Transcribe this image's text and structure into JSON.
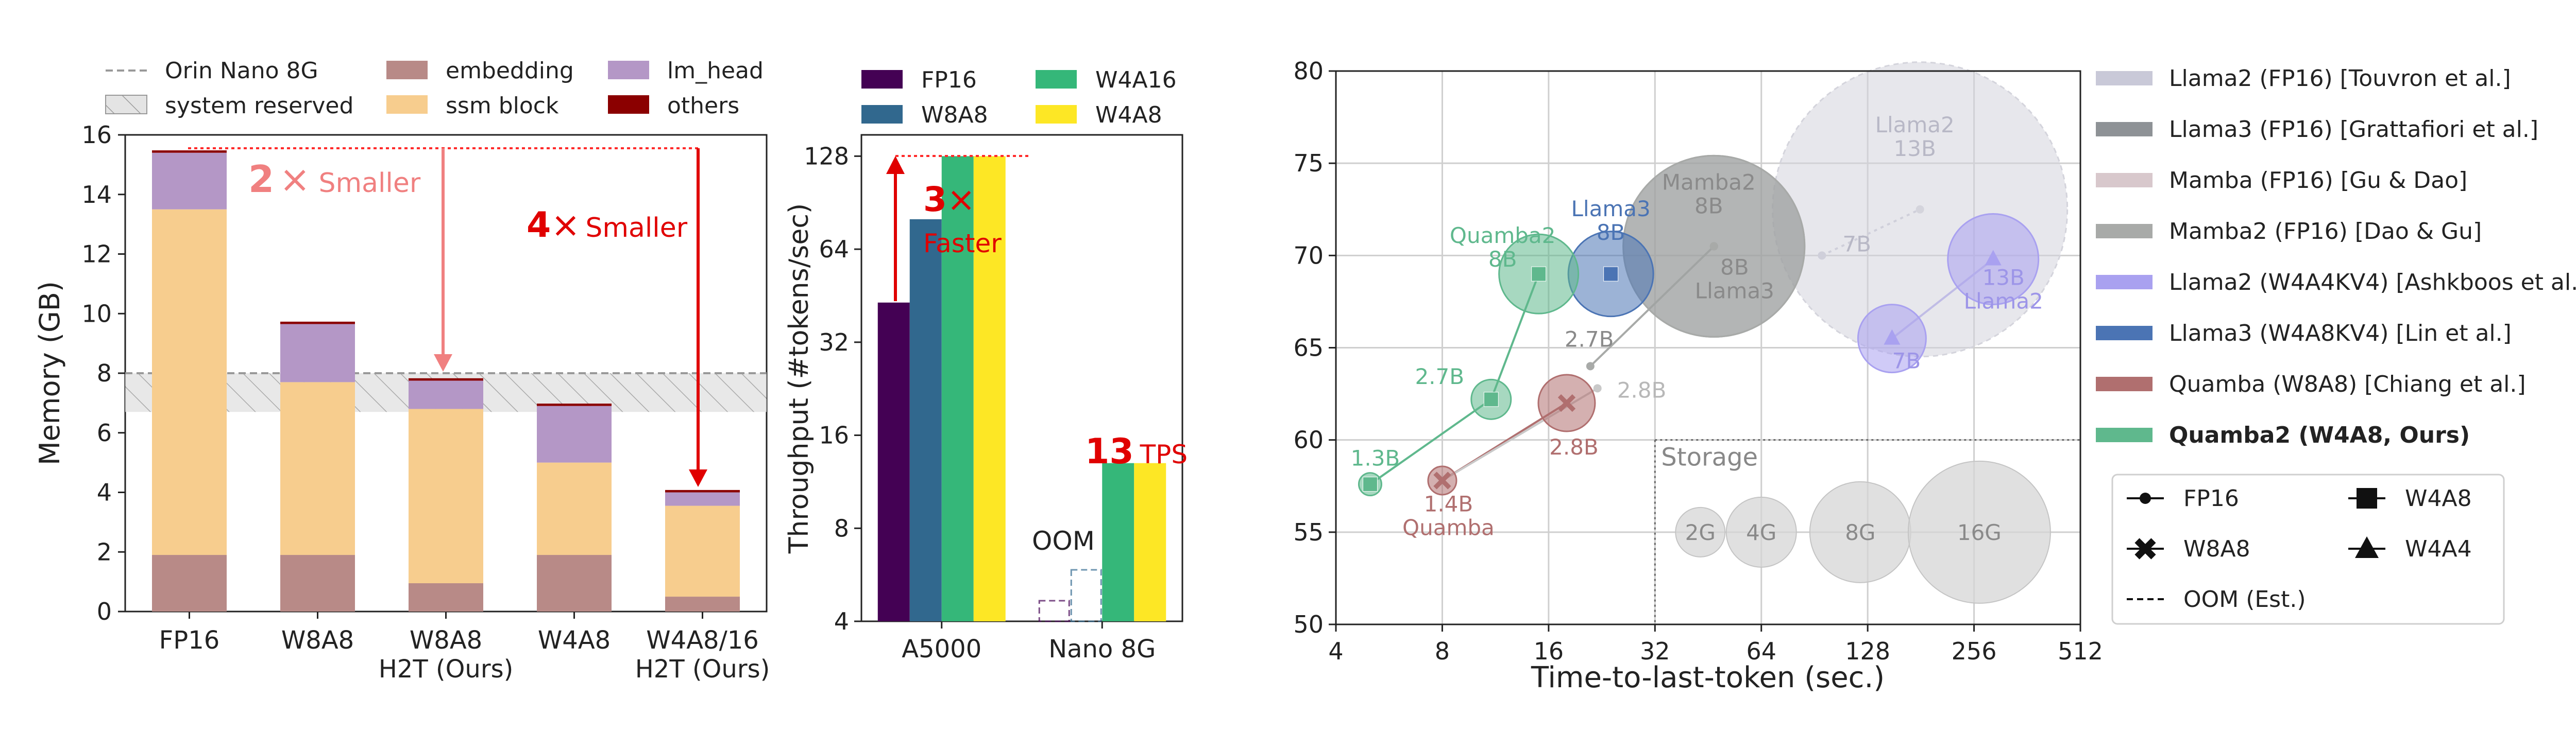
{
  "chart_data": [
    {
      "type": "bar",
      "subtype": "stacked",
      "ylabel": "Memory (GB)",
      "ylim": [
        0,
        16
      ],
      "yticks": [
        "0",
        "2",
        "4",
        "6",
        "8",
        "10",
        "12",
        "14",
        "16"
      ],
      "categories": [
        "FP16",
        "W8A8",
        "W8A8\nH2T (Ours)",
        "W4A8",
        "W4A8/16\nH2T (Ours)"
      ],
      "series": [
        {
          "name": "embedding",
          "color": "#b88a87",
          "values": [
            1.9,
            1.9,
            0.95,
            1.9,
            0.5
          ]
        },
        {
          "name": "ssm block",
          "color": "#f7cd8e",
          "values": [
            11.6,
            5.8,
            5.85,
            3.1,
            3.05
          ]
        },
        {
          "name": "lm_head",
          "color": "#b497c6",
          "values": [
            1.9,
            1.95,
            0.95,
            1.9,
            0.45
          ]
        },
        {
          "name": "others",
          "color": "#8b0000",
          "values": [
            0.08,
            0.08,
            0.08,
            0.08,
            0.08
          ]
        }
      ],
      "reference_line": {
        "name": "Orin Nano 8G",
        "value": 8
      },
      "reserved_band": {
        "name": "system reserved",
        "range": [
          6.7,
          8
        ]
      },
      "annotations": [
        {
          "factor": "2",
          "sym": "×",
          "word": "Smaller",
          "color": "#f08080"
        },
        {
          "factor": "4",
          "sym": "×",
          "word": "Smaller",
          "color": "#e00000"
        }
      ],
      "legend": {
        "position": "top",
        "entries": [
          "Orin Nano 8G",
          "system reserved",
          "embedding",
          "ssm block",
          "lm_head",
          "others"
        ]
      }
    },
    {
      "type": "bar",
      "subtype": "grouped",
      "ylabel": "Throughput (#tokens/sec)",
      "yscale": "log2",
      "ylim": [
        4,
        150
      ],
      "yticks": [
        "4",
        "8",
        "16",
        "32",
        "64",
        "128"
      ],
      "categories": [
        "A5000",
        "Nano 8G"
      ],
      "series": [
        {
          "name": "FP16",
          "color": "#440154",
          "values": [
            43,
            null
          ]
        },
        {
          "name": "W8A8",
          "color": "#31688e",
          "values": [
            80,
            null
          ]
        },
        {
          "name": "W4A16",
          "color": "#35b779",
          "values": [
            128,
            13
          ]
        },
        {
          "name": "W4A8",
          "color": "#fde725",
          "values": [
            128,
            13
          ]
        }
      ],
      "oom_label": "OOM",
      "annotations": [
        {
          "factor": "3",
          "sym": "×",
          "word": "Faster",
          "color": "#e00000"
        },
        {
          "value": "13",
          "unit": "TPS",
          "color": "#e00000"
        }
      ],
      "legend": {
        "position": "top",
        "entries": [
          "FP16",
          "W8A8",
          "W4A16",
          "W4A8"
        ]
      }
    },
    {
      "type": "scatter",
      "subtype": "bubble",
      "xlabel": "Time-to-last-token (sec.)",
      "xscale": "log2",
      "xlim": [
        4,
        512
      ],
      "xticks": [
        "4",
        "8",
        "16",
        "32",
        "64",
        "128",
        "256",
        "512"
      ],
      "ylim": [
        50,
        80
      ],
      "yticks": [
        "50",
        "55",
        "60",
        "65",
        "70",
        "75",
        "80"
      ],
      "points": [
        {
          "family": "Llama2 (FP16)",
          "model": "7B",
          "label": "7B",
          "x": 95,
          "y": 70,
          "marker": "circle",
          "bubble": 0,
          "color": "#c9c9d8"
        },
        {
          "family": "Llama2 (FP16)",
          "model": "13B",
          "label": "Llama2\n13B",
          "x": 180,
          "y": 72.5,
          "marker": "circle",
          "bubble": 26,
          "color": "#d4d4dc"
        },
        {
          "family": "Llama3 (FP16)",
          "model": "8B",
          "label": "8B\nLlama3",
          "x": 47,
          "y": 70.5,
          "marker": "circle",
          "bubble": 16,
          "color": "#8e9296"
        },
        {
          "family": "Mamba2 (FP16)",
          "model": "8B",
          "label": "Mamba2\n8B",
          "x": 47,
          "y": 70.5,
          "marker": "circle",
          "bubble": 16,
          "color": "#a8aaa8"
        },
        {
          "family": "Mamba2 (FP16)",
          "model": "2.7B",
          "label": "2.7B",
          "x": 21,
          "y": 64,
          "marker": "circle",
          "bubble": 0,
          "color": "#a8aaa8"
        },
        {
          "family": "Mamba (FP16)",
          "model": "2.8B",
          "label": "2.8B",
          "x": 22,
          "y": 62.8,
          "marker": "circle",
          "bubble": 0,
          "color": "#c9c9c9"
        },
        {
          "family": "Llama2 (W4A4KV4)",
          "model": "7B",
          "label": "7B",
          "x": 150,
          "y": 65.5,
          "marker": "triangle",
          "bubble": 6,
          "color": "#a9a1f0"
        },
        {
          "family": "Llama2 (W4A4KV4)",
          "model": "13B",
          "label": "13B\nLlama2",
          "x": 290,
          "y": 69.8,
          "marker": "triangle",
          "bubble": 8,
          "color": "#a9a1f0"
        },
        {
          "family": "Llama3 (W4A8KV4)",
          "model": "8B",
          "label": "Llama3\n8B",
          "x": 24,
          "y": 69,
          "marker": "square",
          "bubble": 7.5,
          "color": "#4b74b4"
        },
        {
          "family": "Quamba (W8A8)",
          "model": "1.4B",
          "label": "1.4B\nQuamba",
          "x": 8,
          "y": 57.8,
          "marker": "x",
          "bubble": 2.5,
          "color": "#b06f6f"
        },
        {
          "family": "Quamba (W8A8)",
          "model": "2.8B",
          "label": "2.8B",
          "x": 18,
          "y": 62,
          "marker": "x",
          "bubble": 5,
          "color": "#b06f6f"
        },
        {
          "family": "Quamba2 (W4A8)",
          "model": "1.3B",
          "label": "1.3B",
          "x": 5,
          "y": 57.6,
          "marker": "square",
          "bubble": 2,
          "color": "#5fb88d"
        },
        {
          "family": "Quamba2 (W4A8)",
          "model": "2.7B",
          "label": "2.7B",
          "x": 11,
          "y": 62.2,
          "marker": "square",
          "bubble": 3.5,
          "color": "#5fb88d"
        },
        {
          "family": "Quamba2 (W4A8)",
          "model": "8B",
          "label": "Quamba2\n8B",
          "x": 15,
          "y": 69,
          "marker": "square",
          "bubble": 7,
          "color": "#5fb88d"
        }
      ],
      "storage_box": {
        "label": "Storage",
        "legend": [
          "2G",
          "4G",
          "8G",
          "16G"
        ]
      },
      "legend": {
        "position": "right",
        "entries": [
          {
            "label": "Llama2 (FP16) [Touvron et al.]",
            "color": "#c9c9d8"
          },
          {
            "label": "Llama3 (FP16) [Grattafiori et al.]",
            "color": "#8e9296"
          },
          {
            "label": "Mamba (FP16) [Gu & Dao]",
            "color": "#d8c8cc"
          },
          {
            "label": "Mamba2 (FP16) [Dao & Gu]",
            "color": "#a8aaa8"
          },
          {
            "label": "Llama2 (W4A4KV4) [Ashkboos et al.]",
            "color": "#a9a1f0"
          },
          {
            "label": "Llama3 (W4A8KV4) [Lin et al.]",
            "color": "#4b74b4"
          },
          {
            "label": "Quamba (W8A8) [Chiang et al.]",
            "color": "#b06f6f"
          },
          {
            "label": "Quamba2 (W4A8, Ours)",
            "color": "#5fb88d"
          }
        ],
        "markers": [
          "FP16",
          "W4A8",
          "W8A8",
          "W4A4",
          "OOM (Est.)"
        ]
      }
    }
  ]
}
